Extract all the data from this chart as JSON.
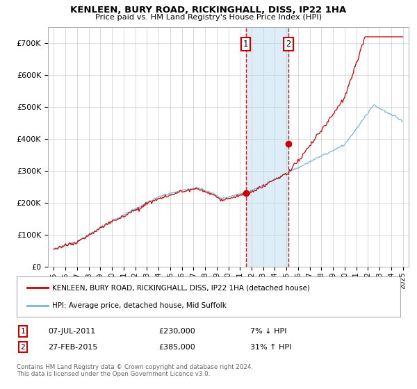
{
  "title": "KENLEEN, BURY ROAD, RICKINGHALL, DISS, IP22 1HA",
  "subtitle": "Price paid vs. HM Land Registry's House Price Index (HPI)",
  "legend_line1": "KENLEEN, BURY ROAD, RICKINGHALL, DISS, IP22 1HA (detached house)",
  "legend_line2": "HPI: Average price, detached house, Mid Suffolk",
  "footnote": "Contains HM Land Registry data © Crown copyright and database right 2024.\nThis data is licensed under the Open Government Licence v3.0.",
  "sale1_label": "1",
  "sale1_date": "07-JUL-2011",
  "sale1_price": "£230,000",
  "sale1_hpi": "7% ↓ HPI",
  "sale1_year": 2011.5,
  "sale1_value": 230000,
  "sale2_label": "2",
  "sale2_date": "27-FEB-2015",
  "sale2_price": "£385,000",
  "sale2_hpi": "31% ↑ HPI",
  "sale2_year": 2015.17,
  "sale2_value": 385000,
  "hpi_color": "#7ab4d8",
  "price_color": "#cc0000",
  "bg_color": "#ffffff",
  "shade_color": "#ddeef8",
  "grid_color": "#cccccc",
  "ylim": [
    0,
    750000
  ],
  "yticks": [
    0,
    100000,
    200000,
    300000,
    400000,
    500000,
    600000,
    700000
  ],
  "ytick_labels": [
    "£0",
    "£100K",
    "£200K",
    "£300K",
    "£400K",
    "£500K",
    "£600K",
    "£700K"
  ],
  "years_start": 1995,
  "years_end": 2025,
  "xlim_start": 1994.5,
  "xlim_end": 2025.5
}
